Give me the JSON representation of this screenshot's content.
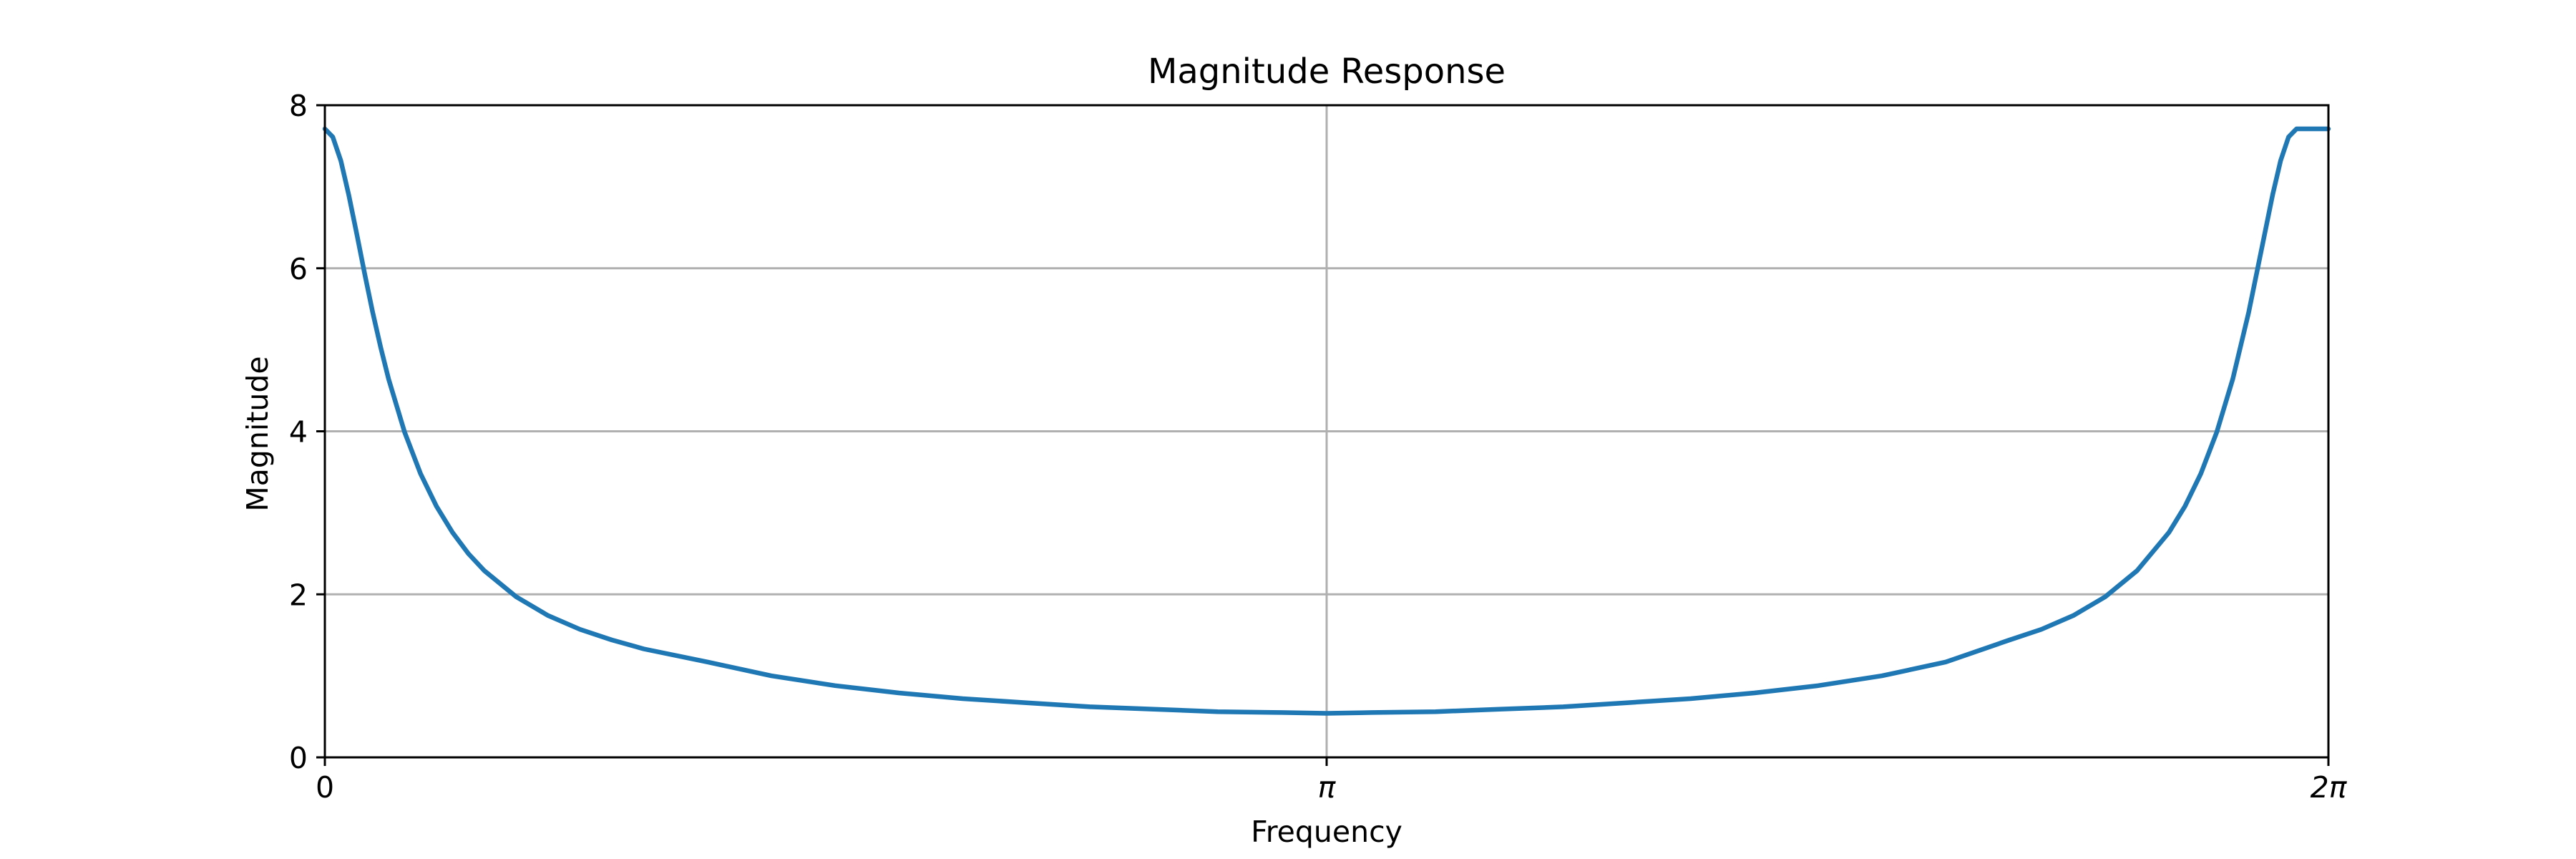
{
  "chart_data": {
    "type": "line",
    "title": "Magnitude Response",
    "xlabel": "Frequency",
    "ylabel": "Magnitude",
    "xlim": [
      0,
      6.283185307
    ],
    "ylim": [
      0,
      8
    ],
    "grid": true,
    "x_ticks": [
      {
        "value": 0,
        "label": "0"
      },
      {
        "value": 3.141592654,
        "label": "π"
      },
      {
        "value": 6.283185307,
        "label": "2π"
      }
    ],
    "y_ticks": [
      {
        "value": 0,
        "label": "0"
      },
      {
        "value": 2,
        "label": "2"
      },
      {
        "value": 4,
        "label": "4"
      },
      {
        "value": 6,
        "label": "6"
      },
      {
        "value": 8,
        "label": "8"
      }
    ],
    "series": [
      {
        "color": "#1f77b4",
        "x": [
          0,
          0.025,
          0.05,
          0.075,
          0.1,
          0.125,
          0.15,
          0.175,
          0.2,
          0.25,
          0.3,
          0.35,
          0.4,
          0.45,
          0.5,
          0.6,
          0.7,
          0.8,
          0.9,
          1.0,
          1.2,
          1.4,
          1.6,
          1.8,
          2.0,
          2.2,
          2.4,
          2.6,
          2.8,
          3.0,
          3.141592654,
          3.283185307,
          3.483185307,
          3.683185307,
          3.883185307,
          4.083185307,
          4.283185307,
          4.483185307,
          4.683185307,
          4.883185307,
          5.083185307,
          5.283185307,
          5.383185307,
          5.483185307,
          5.583185307,
          5.683185307,
          5.783185307,
          5.833185307,
          5.883185307,
          5.933185307,
          5.983185307,
          6.033185307,
          6.083185307,
          6.108185307,
          6.133185307,
          6.158185307,
          6.183185307,
          6.208185307,
          6.233185307,
          6.258185307,
          6.283185307
        ],
        "values": [
          7.71,
          7.61,
          7.32,
          6.9,
          6.42,
          5.93,
          5.46,
          5.03,
          4.64,
          3.99,
          3.48,
          3.08,
          2.76,
          2.5,
          2.29,
          1.97,
          1.74,
          1.57,
          1.44,
          1.33,
          1.17,
          1.0,
          0.88,
          0.79,
          0.72,
          0.67,
          0.62,
          0.59,
          0.56,
          0.55,
          0.54,
          0.55,
          0.56,
          0.59,
          0.62,
          0.67,
          0.72,
          0.79,
          0.88,
          1.0,
          1.17,
          1.44,
          1.57,
          1.74,
          1.97,
          2.29,
          2.76,
          3.08,
          3.48,
          3.99,
          4.64,
          5.46,
          6.42,
          6.9,
          7.32,
          7.61,
          7.71,
          7.71,
          7.71,
          7.71,
          7.71
        ]
      }
    ]
  }
}
